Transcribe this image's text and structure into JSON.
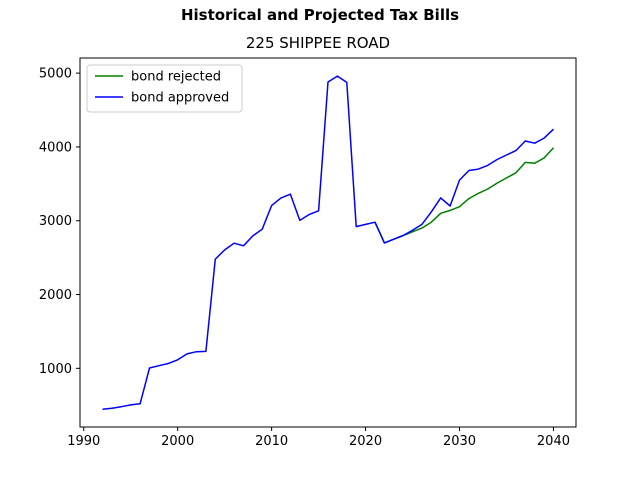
{
  "chart_data": {
    "type": "line",
    "title": "Historical and Projected Tax Bills",
    "subtitle": "225 SHIPPEE ROAD",
    "xlim": [
      1989.6,
      2042.4
    ],
    "ylim": [
      205,
      5205
    ],
    "x_ticks": [
      1990,
      2000,
      2010,
      2020,
      2030,
      2040
    ],
    "y_ticks": [
      1000,
      2000,
      3000,
      4000,
      5000
    ],
    "legend_position": "upper-left",
    "grid": false,
    "series": [
      {
        "name": "bond rejected",
        "color": "#008000",
        "x": [
          2021,
          2022,
          2023,
          2024,
          2025,
          2026,
          2027,
          2028,
          2029,
          2030,
          2031,
          2032,
          2033,
          2034,
          2035,
          2036,
          2037,
          2038,
          2039,
          2040
        ],
        "y": [
          2980,
          2700,
          2750,
          2800,
          2850,
          2900,
          2980,
          3100,
          3140,
          3190,
          3300,
          3370,
          3430,
          3510,
          3580,
          3650,
          3790,
          3780,
          3850,
          3990
        ]
      },
      {
        "name": "bond approved",
        "color": "#0000ff",
        "x": [
          1992,
          1993,
          1994,
          1995,
          1996,
          1997,
          1998,
          1999,
          2000,
          2001,
          2002,
          2003,
          2004,
          2005,
          2006,
          2007,
          2008,
          2009,
          2010,
          2011,
          2012,
          2013,
          2014,
          2015,
          2016,
          2017,
          2018,
          2019,
          2020,
          2021,
          2022,
          2023,
          2024,
          2025,
          2026,
          2027,
          2028,
          2029,
          2030,
          2031,
          2032,
          2033,
          2034,
          2035,
          2036,
          2037,
          2038,
          2039,
          2040
        ],
        "y": [
          445,
          460,
          480,
          505,
          520,
          1005,
          1035,
          1065,
          1115,
          1195,
          1225,
          1230,
          2480,
          2605,
          2695,
          2660,
          2795,
          2885,
          3205,
          3310,
          3360,
          3005,
          3085,
          3135,
          4880,
          4960,
          4875,
          2920,
          2950,
          2980,
          2700,
          2750,
          2800,
          2870,
          2950,
          3120,
          3310,
          3200,
          3550,
          3680,
          3700,
          3750,
          3830,
          3890,
          3950,
          4080,
          4050,
          4120,
          4240
        ]
      }
    ]
  }
}
